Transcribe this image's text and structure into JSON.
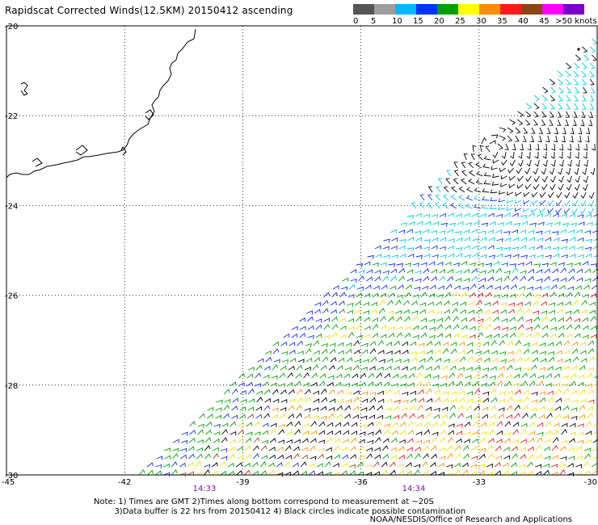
{
  "title": "Rapidscat Corrected Winds(12.5KM) 20150412 ascending",
  "colorbar": {
    "unit_label": ">50 knots",
    "tick_labels": [
      "0",
      "5",
      "10",
      "15",
      "20",
      "25",
      "30",
      "35",
      "40",
      "45"
    ],
    "colors": [
      "#555555",
      "#9e9e9e",
      "#00b8ff",
      "#0033ff",
      "#00a000",
      "#ffff00",
      "#ff8c00",
      "#ff1a1a",
      "#8b4513",
      "#ff00ff",
      "#7a00cc"
    ]
  },
  "axes": {
    "x_tick_labels": [
      "-45",
      "-42",
      "-39",
      "-36",
      "-33",
      "-30"
    ],
    "y_tick_labels": [
      "-20",
      "-22",
      "-24",
      "-26",
      "-28",
      "-30"
    ],
    "x_range": [
      -45,
      -30
    ],
    "y_range": [
      -20,
      -30
    ]
  },
  "pass_times": [
    "14:33",
    "14:34"
  ],
  "notes": {
    "line1": "Note: 1) Times are GMT 2)Times along bottom correspond to measurement at ~20S",
    "line2": "3)Data buffer is 22 hrs from 20150412 4) Black circles indicate possible contamination"
  },
  "credit": "NOAA/NESDIS/Office of Research and Applications"
}
